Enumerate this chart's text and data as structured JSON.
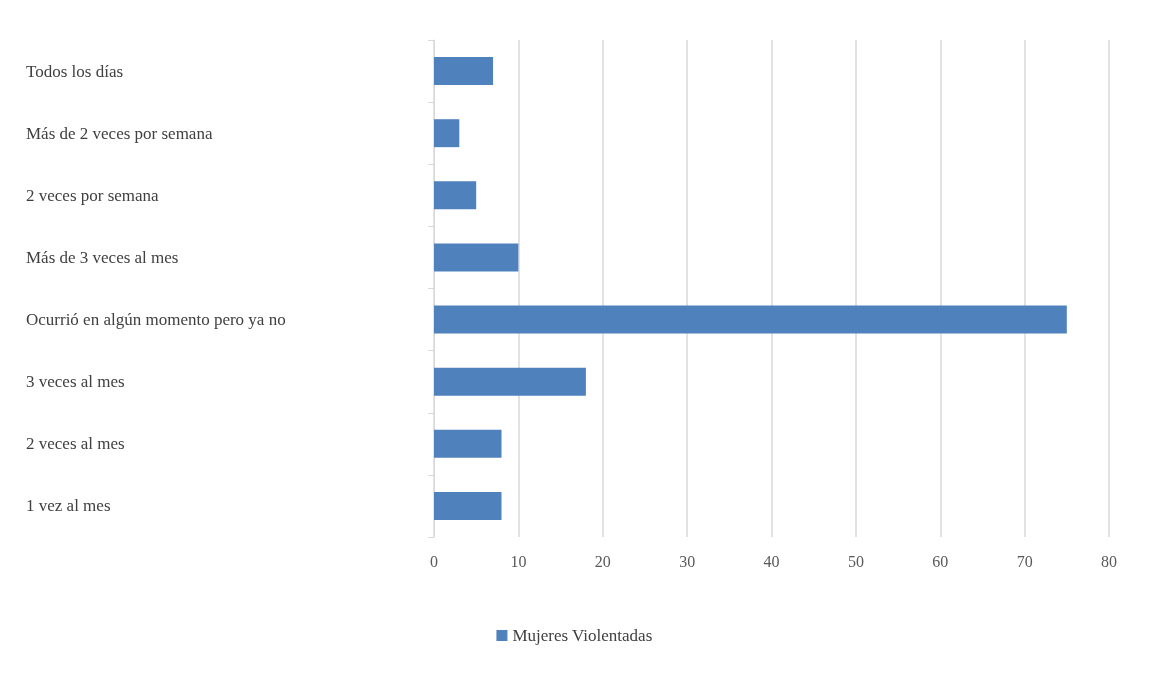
{
  "chart_data": {
    "type": "bar",
    "orientation": "horizontal",
    "categories": [
      "Todos los días",
      "Más de 2 veces por semana",
      "2 veces por semana",
      "Más de 3 veces al mes",
      "Ocurrió en algún momento pero ya no",
      "3 veces al mes",
      "2 veces al mes",
      "1 vez al mes"
    ],
    "series": [
      {
        "name": "Mujeres Violentadas",
        "color": "#4f81bd",
        "values": [
          7,
          3,
          5,
          10,
          75,
          18,
          8,
          8
        ]
      }
    ],
    "xlim": [
      0,
      80
    ],
    "xticks": [
      0,
      10,
      20,
      30,
      40,
      50,
      60,
      70,
      80
    ],
    "grid": "x",
    "legend": "bottom"
  }
}
